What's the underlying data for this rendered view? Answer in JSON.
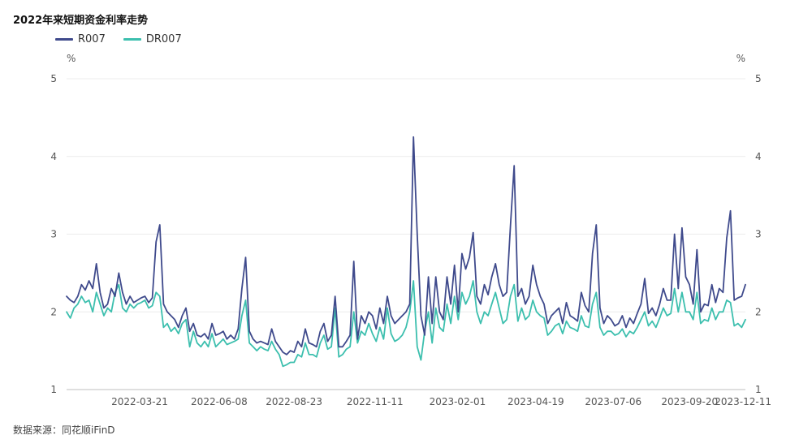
{
  "title": "2022年来短期资金利率走势",
  "source": "数据来源：同花顺iFinD",
  "chart_data": {
    "type": "line",
    "y_unit_left": "%",
    "y_unit_right": "%",
    "ylim": [
      1,
      5
    ],
    "y_ticks": [
      "1",
      "2",
      "3",
      "4",
      "5"
    ],
    "x_ticks": [
      "2022-03-21",
      "2022-06-08",
      "2022-08-23",
      "2022-11-11",
      "2023-02-01",
      "2023-04-19",
      "2023-07-06",
      "2023-09-20",
      "2023-12-11"
    ],
    "x_tick_positions": [
      0.1077,
      0.2248,
      0.3351,
      0.4543,
      0.5759,
      0.6912,
      0.8053,
      0.9178,
      1.0
    ],
    "grid": "horizontal",
    "legend_position": "top-left",
    "series": [
      {
        "name": "R007",
        "color": "#3f4a8c",
        "values": [
          2.2,
          2.15,
          2.12,
          2.2,
          2.35,
          2.28,
          2.4,
          2.3,
          2.62,
          2.25,
          2.05,
          2.1,
          2.3,
          2.2,
          2.5,
          2.25,
          2.1,
          2.2,
          2.12,
          2.15,
          2.18,
          2.2,
          2.12,
          2.18,
          2.9,
          3.12,
          2.1,
          2.0,
          1.95,
          1.9,
          1.8,
          1.95,
          2.05,
          1.75,
          1.85,
          1.7,
          1.68,
          1.72,
          1.65,
          1.85,
          1.7,
          1.72,
          1.75,
          1.65,
          1.7,
          1.65,
          1.78,
          2.3,
          2.7,
          1.75,
          1.65,
          1.6,
          1.62,
          1.6,
          1.58,
          1.78,
          1.62,
          1.55,
          1.48,
          1.45,
          1.5,
          1.48,
          1.62,
          1.55,
          1.78,
          1.6,
          1.58,
          1.55,
          1.75,
          1.85,
          1.62,
          1.7,
          2.2,
          1.55,
          1.55,
          1.62,
          1.7,
          2.65,
          1.65,
          1.95,
          1.85,
          2.0,
          1.95,
          1.78,
          2.05,
          1.85,
          2.2,
          1.95,
          1.85,
          1.9,
          1.95,
          2.0,
          2.1,
          4.25,
          3.0,
          1.95,
          1.7,
          2.45,
          1.85,
          2.45,
          2.0,
          1.9,
          2.45,
          2.1,
          2.6,
          2.0,
          2.75,
          2.55,
          2.7,
          3.02,
          2.2,
          2.1,
          2.35,
          2.22,
          2.45,
          2.62,
          2.35,
          2.2,
          2.25,
          3.1,
          3.88,
          2.2,
          2.3,
          2.1,
          2.2,
          2.6,
          2.35,
          2.2,
          2.1,
          1.85,
          1.95,
          2.0,
          2.05,
          1.85,
          2.12,
          1.95,
          1.92,
          1.88,
          2.25,
          2.08,
          2.0,
          2.75,
          3.12,
          2.05,
          1.85,
          1.95,
          1.9,
          1.82,
          1.85,
          1.95,
          1.8,
          1.92,
          1.85,
          1.98,
          2.1,
          2.43,
          1.98,
          2.05,
          1.95,
          2.1,
          2.3,
          2.15,
          2.15,
          3.0,
          2.3,
          3.08,
          2.45,
          2.35,
          2.1,
          2.8,
          2.0,
          2.1,
          2.08,
          2.35,
          2.12,
          2.3,
          2.25,
          2.95,
          3.3,
          2.15,
          2.18,
          2.2,
          2.35
        ]
      },
      {
        "name": "DR007",
        "color": "#3cbfae",
        "values": [
          2.0,
          1.92,
          2.05,
          2.1,
          2.2,
          2.12,
          2.15,
          2.0,
          2.25,
          2.1,
          1.95,
          2.05,
          2.0,
          2.25,
          2.35,
          2.05,
          2.0,
          2.1,
          2.05,
          2.1,
          2.12,
          2.15,
          2.05,
          2.08,
          2.25,
          2.2,
          1.8,
          1.85,
          1.75,
          1.8,
          1.72,
          1.85,
          1.9,
          1.55,
          1.75,
          1.6,
          1.55,
          1.62,
          1.55,
          1.72,
          1.55,
          1.6,
          1.65,
          1.58,
          1.6,
          1.62,
          1.65,
          1.95,
          2.15,
          1.6,
          1.55,
          1.5,
          1.55,
          1.52,
          1.5,
          1.62,
          1.52,
          1.45,
          1.3,
          1.32,
          1.35,
          1.35,
          1.45,
          1.42,
          1.6,
          1.45,
          1.45,
          1.42,
          1.6,
          1.7,
          1.52,
          1.55,
          2.05,
          1.42,
          1.45,
          1.52,
          1.55,
          2.0,
          1.6,
          1.75,
          1.7,
          1.85,
          1.72,
          1.62,
          1.8,
          1.65,
          2.05,
          1.72,
          1.62,
          1.65,
          1.7,
          1.8,
          2.0,
          2.4,
          1.55,
          1.38,
          1.75,
          2.0,
          1.6,
          2.05,
          1.8,
          1.75,
          2.1,
          1.85,
          2.2,
          1.9,
          2.25,
          2.1,
          2.2,
          2.4,
          2.0,
          1.85,
          2.0,
          1.95,
          2.1,
          2.25,
          2.05,
          1.85,
          1.9,
          2.2,
          2.35,
          1.88,
          2.05,
          1.9,
          1.95,
          2.15,
          2.0,
          1.95,
          1.92,
          1.7,
          1.75,
          1.82,
          1.85,
          1.72,
          1.88,
          1.8,
          1.78,
          1.75,
          1.95,
          1.82,
          1.8,
          2.1,
          2.25,
          1.8,
          1.7,
          1.75,
          1.75,
          1.7,
          1.72,
          1.78,
          1.68,
          1.75,
          1.72,
          1.8,
          1.9,
          2.0,
          1.82,
          1.88,
          1.8,
          1.92,
          2.05,
          1.95,
          1.98,
          2.3,
          2.0,
          2.25,
          2.0,
          2.0,
          1.9,
          2.25,
          1.85,
          1.9,
          1.88,
          2.05,
          1.9,
          2.0,
          2.0,
          2.15,
          2.12,
          1.82,
          1.85,
          1.8,
          1.9
        ]
      }
    ]
  }
}
